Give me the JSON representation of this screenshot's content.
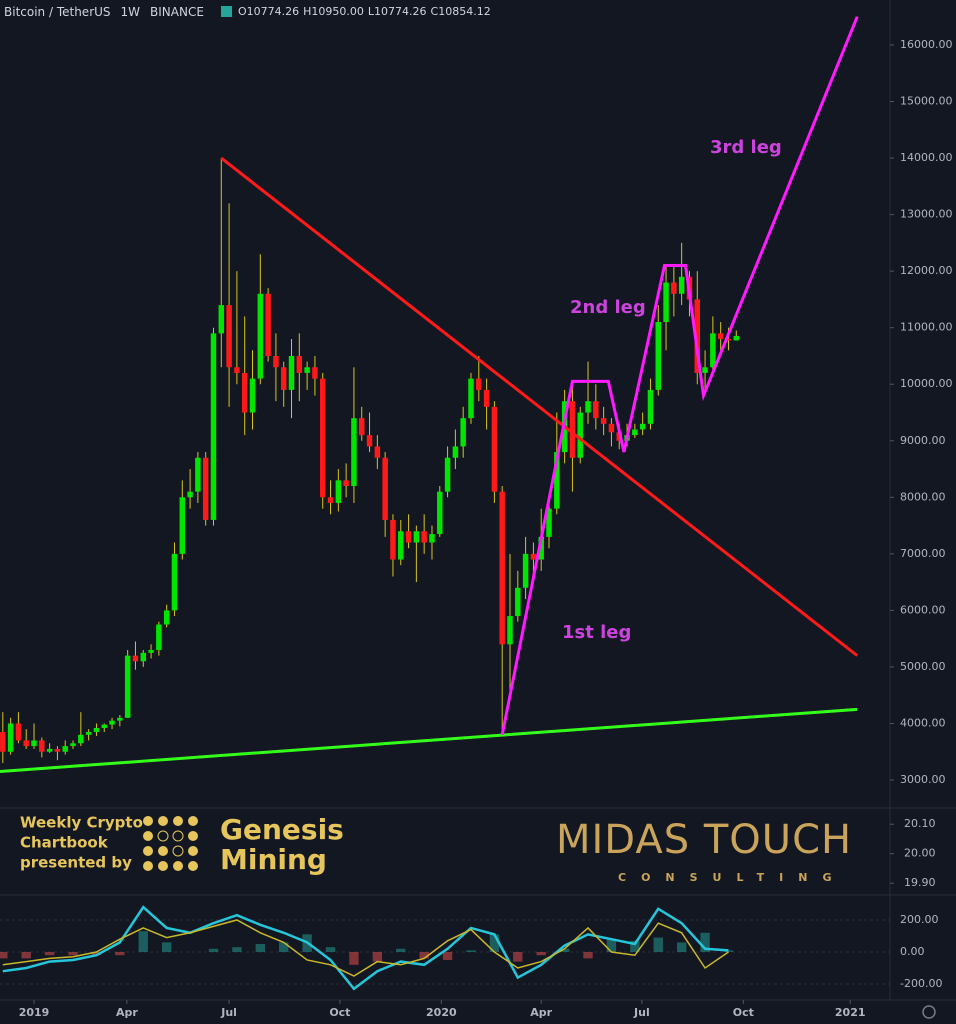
{
  "chart_data": {
    "type": "candlestick",
    "title": "Bitcoin / TetherUS",
    "interval": "1W",
    "exchange": "BINANCE",
    "last_bar_labels": [
      "O10774.26",
      "H10950.00",
      "L10774.26",
      "C10854.12"
    ],
    "x": [
      -4,
      -3,
      -2,
      -1,
      0,
      1,
      2,
      3,
      4,
      5,
      6,
      7,
      8,
      9,
      10,
      11,
      12,
      13,
      14,
      15,
      16,
      17,
      18,
      19,
      20,
      21,
      22,
      23,
      24,
      25,
      26,
      27,
      28,
      29,
      30,
      31,
      32,
      33,
      34,
      35,
      36,
      37,
      38,
      39,
      40,
      41,
      42,
      43,
      44,
      45,
      46,
      47,
      48,
      49,
      50,
      51,
      52,
      53,
      54,
      55,
      56,
      57,
      58,
      59,
      60,
      61,
      62,
      63,
      64,
      65,
      66,
      67,
      68,
      69,
      70,
      71,
      72,
      73,
      74,
      75,
      76,
      77,
      78,
      79,
      80,
      81,
      82,
      83,
      84,
      85,
      86,
      87,
      88,
      89,
      90
    ],
    "ohlc": [
      [
        3850,
        4200,
        3300,
        3500
      ],
      [
        3500,
        4100,
        3450,
        4000
      ],
      [
        4000,
        4200,
        3650,
        3700
      ],
      [
        3700,
        3900,
        3550,
        3600
      ],
      [
        3600,
        4000,
        3550,
        3700
      ],
      [
        3700,
        3750,
        3400,
        3500
      ],
      [
        3500,
        3650,
        3480,
        3550
      ],
      [
        3550,
        3600,
        3350,
        3500
      ],
      [
        3500,
        3700,
        3450,
        3600
      ],
      [
        3600,
        3700,
        3550,
        3650
      ],
      [
        3650,
        4200,
        3600,
        3800
      ],
      [
        3800,
        3900,
        3700,
        3850
      ],
      [
        3850,
        4000,
        3780,
        3920
      ],
      [
        3920,
        4000,
        3850,
        3980
      ],
      [
        3980,
        4100,
        3900,
        4050
      ],
      [
        4050,
        4150,
        3950,
        4100
      ],
      [
        4100,
        5300,
        4100,
        5200
      ],
      [
        5200,
        5450,
        4950,
        5100
      ],
      [
        5100,
        5300,
        5000,
        5250
      ],
      [
        5250,
        5400,
        5150,
        5300
      ],
      [
        5300,
        5800,
        5200,
        5750
      ],
      [
        5750,
        6100,
        5700,
        6000
      ],
      [
        6000,
        7200,
        5900,
        7000
      ],
      [
        7000,
        8300,
        6900,
        8000
      ],
      [
        8000,
        8500,
        7800,
        8100
      ],
      [
        8100,
        8800,
        7900,
        8700
      ],
      [
        8700,
        8800,
        7500,
        7600
      ],
      [
        7600,
        11000,
        7500,
        10900
      ],
      [
        10900,
        14000,
        10300,
        11400
      ],
      [
        11400,
        13200,
        9600,
        10300
      ],
      [
        10300,
        12000,
        10000,
        10200
      ],
      [
        10200,
        11200,
        9100,
        9500
      ],
      [
        9500,
        10600,
        9200,
        10100
      ],
      [
        10100,
        12300,
        10000,
        11600
      ],
      [
        11600,
        11700,
        10400,
        10500
      ],
      [
        10500,
        10900,
        9700,
        10300
      ],
      [
        10300,
        10400,
        9600,
        9900
      ],
      [
        9900,
        10800,
        9400,
        10500
      ],
      [
        10500,
        10900,
        9700,
        10200
      ],
      [
        10200,
        10400,
        9900,
        10300
      ],
      [
        10300,
        10500,
        9800,
        10100
      ],
      [
        10100,
        10200,
        7800,
        8000
      ],
      [
        8000,
        8300,
        7700,
        7900
      ],
      [
        7900,
        8500,
        7750,
        8300
      ],
      [
        8300,
        8600,
        8000,
        8200
      ],
      [
        8200,
        10300,
        7900,
        9400
      ],
      [
        9400,
        9600,
        9000,
        9100
      ],
      [
        9100,
        9500,
        8800,
        8900
      ],
      [
        8900,
        9100,
        8500,
        8700
      ],
      [
        8700,
        8800,
        7300,
        7600
      ],
      [
        7600,
        7700,
        6600,
        6900
      ],
      [
        6900,
        7600,
        6800,
        7400
      ],
      [
        7400,
        7700,
        7100,
        7200
      ],
      [
        7200,
        7500,
        6500,
        7400
      ],
      [
        7400,
        7700,
        7000,
        7200
      ],
      [
        7200,
        7500,
        6900,
        7350
      ],
      [
        7350,
        8200,
        7300,
        8100
      ],
      [
        8100,
        8900,
        8000,
        8700
      ],
      [
        8700,
        9200,
        8500,
        8900
      ],
      [
        8900,
        9600,
        8700,
        9400
      ],
      [
        9400,
        10200,
        9300,
        10100
      ],
      [
        10100,
        10500,
        9700,
        9900
      ],
      [
        9900,
        10100,
        9200,
        9600
      ],
      [
        9600,
        9700,
        7900,
        8100
      ],
      [
        8100,
        8200,
        3800,
        5400
      ],
      [
        5400,
        7000,
        4500,
        5900
      ],
      [
        5900,
        6700,
        5800,
        6400
      ],
      [
        6400,
        7300,
        6200,
        7000
      ],
      [
        7000,
        7200,
        6500,
        6900
      ],
      [
        6900,
        7800,
        6700,
        7300
      ],
      [
        7300,
        8000,
        7100,
        7800
      ],
      [
        7800,
        9500,
        7700,
        8800
      ],
      [
        8800,
        9900,
        8600,
        9700
      ],
      [
        9700,
        10000,
        8100,
        8700
      ],
      [
        8700,
        9600,
        8600,
        9500
      ],
      [
        9500,
        10400,
        9300,
        9700
      ],
      [
        9700,
        10000,
        9200,
        9400
      ],
      [
        9400,
        9600,
        9100,
        9300
      ],
      [
        9300,
        9400,
        8900,
        9150
      ],
      [
        9150,
        9300,
        8850,
        9000
      ],
      [
        9000,
        9300,
        8900,
        9100
      ],
      [
        9100,
        9300,
        9050,
        9200
      ],
      [
        9200,
        9500,
        9100,
        9300
      ],
      [
        9300,
        10100,
        9200,
        9900
      ],
      [
        9900,
        11400,
        9800,
        11100
      ],
      [
        11100,
        12100,
        10600,
        11800
      ],
      [
        11800,
        12100,
        11200,
        11600
      ],
      [
        11600,
        12500,
        11400,
        11900
      ],
      [
        11900,
        12000,
        11200,
        11500
      ],
      [
        11500,
        12000,
        10000,
        10200
      ],
      [
        10200,
        10600,
        9900,
        10300
      ],
      [
        10300,
        11200,
        10200,
        10900
      ],
      [
        10900,
        11100,
        10600,
        10800
      ],
      [
        10800,
        11000,
        10600,
        10774.26
      ],
      [
        10774.26,
        10950,
        10774.26,
        10854.12
      ]
    ],
    "up_color": "#00e600",
    "down_color": "#ff1a1a",
    "wick_color": "#d8c51a",
    "xlim": [
      -4.36,
      109.7
    ],
    "xticks": [
      {
        "value": 0,
        "label": "2019"
      },
      {
        "value": 11.9,
        "label": "Apr"
      },
      {
        "value": 25,
        "label": "Jul"
      },
      {
        "value": 39.2,
        "label": "Oct"
      },
      {
        "value": 52.2,
        "label": "2020"
      },
      {
        "value": 65,
        "label": "Apr"
      },
      {
        "value": 77.9,
        "label": "Jul"
      },
      {
        "value": 90.9,
        "label": "Oct"
      },
      {
        "value": 104.6,
        "label": "2021"
      }
    ],
    "ylim": [
      2505,
      16796
    ],
    "yticks": [
      {
        "value": 3000,
        "label": "3000.00"
      },
      {
        "value": 4000,
        "label": "4000.00"
      },
      {
        "value": 5000,
        "label": "5000.00"
      },
      {
        "value": 6000,
        "label": "6000.00"
      },
      {
        "value": 7000,
        "label": "7000.00"
      },
      {
        "value": 8000,
        "label": "8000.00"
      },
      {
        "value": 9000,
        "label": "9000.00"
      },
      {
        "value": 10000,
        "label": "10000.00"
      },
      {
        "value": 11000,
        "label": "11000.00"
      },
      {
        "value": 12000,
        "label": "12000.00"
      },
      {
        "value": 13000,
        "label": "13000.00"
      },
      {
        "value": 14000,
        "label": "14000.00"
      },
      {
        "value": 15000,
        "label": "15000.00"
      },
      {
        "value": 16000,
        "label": "16000.00"
      }
    ],
    "drawings": [
      {
        "color": "#ff1a1a",
        "points": [
          [
            24,
            14000
          ],
          [
            105.5,
            5200
          ]
        ]
      },
      {
        "color": "#33ff1a",
        "points": [
          [
            -4.36,
            3150
          ],
          [
            105.5,
            4250
          ]
        ]
      },
      {
        "color": "#ff1aff",
        "points": [
          [
            60,
            3800
          ],
          [
            69,
            10050
          ],
          [
            73.6,
            10050
          ],
          [
            75.6,
            8800
          ],
          [
            80.8,
            12100
          ],
          [
            83.5,
            12100
          ],
          [
            85.8,
            9800
          ],
          [
            105.5,
            16500
          ]
        ]
      }
    ],
    "annotations": [
      "1st leg",
      "2nd leg",
      "3rd leg"
    ],
    "annotation_color": "#cc44dd",
    "pane2_ylim": [
      19.86,
      20.155
    ],
    "pane2_yticks": [
      {
        "value": 20.1,
        "label": "20.10"
      },
      {
        "value": 20,
        "label": "20.00"
      },
      {
        "value": 19.9,
        "label": "19.90"
      }
    ],
    "branding": {
      "chartbook": [
        "Weekly Crypto",
        "Chartbook",
        "presented by"
      ],
      "sponsor": [
        "Genesis",
        "Mining"
      ],
      "brand": "MIDAS TOUCH",
      "brand_sub": "CONSULTING"
    },
    "oscillator": {
      "x": [
        -4,
        -1,
        2,
        5,
        8,
        11,
        14,
        17,
        20,
        23,
        26,
        29,
        32,
        35,
        38,
        41,
        44,
        47,
        50,
        53,
        56,
        59,
        62,
        65,
        68,
        71,
        74,
        77,
        80,
        83,
        86,
        89
      ],
      "ylim": [
        -300,
        356
      ],
      "yticks": [
        {
          "value": 200,
          "label": "200.00"
        },
        {
          "value": 0,
          "label": "0.00"
        },
        {
          "value": -200,
          "label": "-200.00"
        }
      ],
      "series": [
        {
          "color": "#26c6da",
          "values": [
            -120,
            -100,
            -60,
            -50,
            -20,
            60,
            280,
            150,
            120,
            180,
            230,
            170,
            120,
            60,
            -50,
            -230,
            -120,
            -60,
            -80,
            20,
            150,
            110,
            -160,
            -80,
            40,
            110,
            80,
            50,
            270,
            180,
            20,
            10
          ]
        },
        {
          "color": "#c9b72a",
          "values": [
            -80,
            -60,
            -40,
            -30,
            0,
            80,
            150,
            90,
            120,
            160,
            200,
            120,
            60,
            -50,
            -80,
            -150,
            -60,
            -80,
            -40,
            70,
            140,
            0,
            -100,
            -60,
            20,
            150,
            0,
            -20,
            180,
            120,
            -100,
            0
          ]
        }
      ],
      "histogram": [
        -40,
        -40,
        -20,
        -20,
        -20,
        -20,
        130,
        60,
        0,
        20,
        30,
        50,
        60,
        110,
        30,
        -80,
        -60,
        20,
        -40,
        -50,
        10,
        110,
        -60,
        -20,
        20,
        -40,
        80,
        70,
        90,
        60,
        120,
        10
      ]
    }
  }
}
